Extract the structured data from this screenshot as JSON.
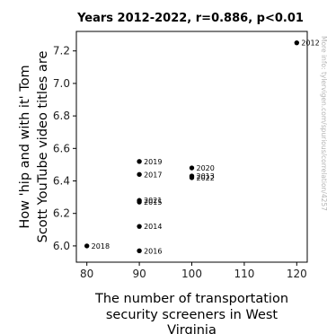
{
  "chart_data": {
    "type": "scatter",
    "title": "Years 2012-2022, r=0.886, p<0.01",
    "xlabel": "The number of transportation security screeners in West Virginia",
    "ylabel": "How 'hip and with it' Tom Scott YouTube video titles are",
    "xlim": [
      78,
      122
    ],
    "ylim": [
      5.9,
      7.32
    ],
    "xticks": [
      80,
      90,
      100,
      110,
      120
    ],
    "yticks": [
      6.0,
      6.2,
      6.4,
      6.6,
      6.8,
      7.0,
      7.2
    ],
    "grid": false,
    "marker_color": "#000000",
    "points": [
      {
        "label": "2012",
        "x": 120,
        "y": 7.25
      },
      {
        "label": "2013",
        "x": 100,
        "y": 6.43
      },
      {
        "label": "2014",
        "x": 90,
        "y": 6.12
      },
      {
        "label": "2015",
        "x": 90,
        "y": 6.27
      },
      {
        "label": "2016",
        "x": 90,
        "y": 5.97
      },
      {
        "label": "2017",
        "x": 90,
        "y": 6.44
      },
      {
        "label": "2018",
        "x": 80,
        "y": 6.0
      },
      {
        "label": "2019",
        "x": 90,
        "y": 6.52
      },
      {
        "label": "2020",
        "x": 100,
        "y": 6.48
      },
      {
        "label": "2021",
        "x": 90,
        "y": 6.28
      },
      {
        "label": "2022",
        "x": 100,
        "y": 6.42
      }
    ]
  },
  "watermark": "More info: tylervigen.com/spurious/correlation/4257"
}
